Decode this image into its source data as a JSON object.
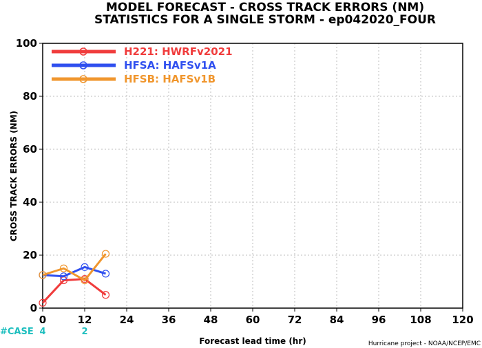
{
  "title_line1": "MODEL FORECAST - CROSS TRACK ERRORS (NM)",
  "title_line2": "STATISTICS FOR A SINGLE STORM - ep042020_FOUR",
  "credit": "Hurricane project - NOAA/NCEP/EMC",
  "case_label": "#CASE",
  "case_counts": [
    {
      "x": 0,
      "label": "4"
    },
    {
      "x": 12,
      "label": "2"
    }
  ],
  "colors": {
    "case": "#1fbfbf",
    "grid": "#bdbdbd"
  },
  "chart_data": {
    "type": "line",
    "xlabel": "Forecast lead time (hr)",
    "ylabel": "CROSS TRACK ERRORS (NM)",
    "xlim": [
      0,
      120
    ],
    "ylim": [
      0,
      100
    ],
    "xticks": [
      0,
      12,
      24,
      36,
      48,
      60,
      72,
      84,
      96,
      108,
      120
    ],
    "yticks": [
      0,
      20,
      40,
      60,
      80,
      100
    ],
    "grid": true,
    "legend_position": "top-left",
    "series": [
      {
        "name": "H221: HWRFv2021",
        "color": "#f03c3c",
        "x": [
          0,
          6,
          12,
          18
        ],
        "values": [
          2,
          10.5,
          11,
          5
        ]
      },
      {
        "name": "HFSA: HAFSv1A",
        "color": "#2f4fef",
        "x": [
          0,
          6,
          12,
          18
        ],
        "values": [
          12.5,
          12,
          15.5,
          13
        ]
      },
      {
        "name": "HFSB: HAFSv1B",
        "color": "#f0962d",
        "x": [
          0,
          6,
          12,
          18
        ],
        "values": [
          12.5,
          15,
          10.5,
          20.5
        ]
      }
    ]
  }
}
